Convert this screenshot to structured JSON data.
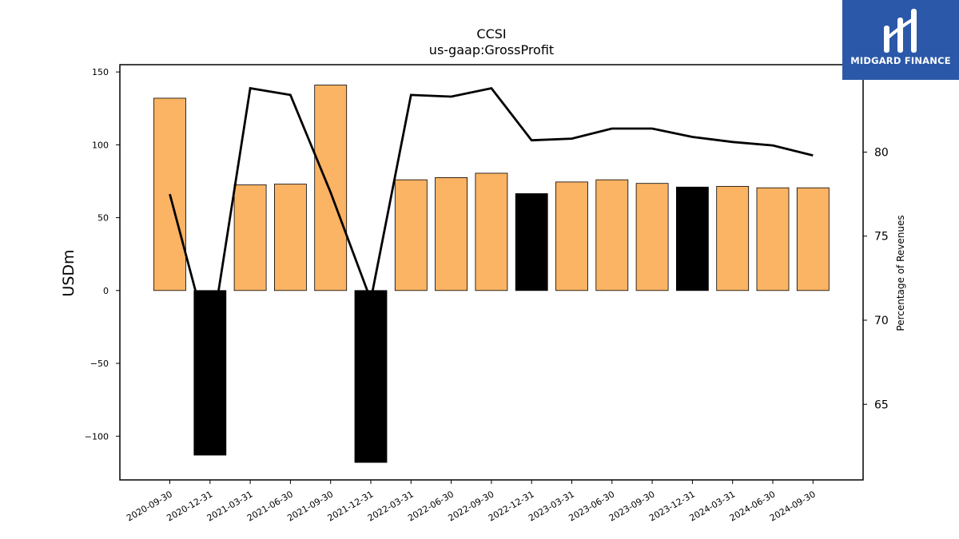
{
  "chart_data": {
    "type": "bar",
    "title": "CCSI",
    "subtitle": "us-gaap:GrossProfit",
    "ylabel": "USDm",
    "ylabel_right": "Percentage of Revenues",
    "ylim": [
      -130,
      155
    ],
    "ylim_right": [
      60.5,
      85.2
    ],
    "yticks": [
      -100,
      -50,
      0,
      50,
      100,
      150
    ],
    "yticks_right": [
      65,
      70,
      75,
      80
    ],
    "grid": false,
    "categories": [
      "2020-09-30",
      "2020-12-31",
      "2021-03-31",
      "2021-06-30",
      "2021-09-30",
      "2021-12-31",
      "2022-03-31",
      "2022-06-30",
      "2022-09-30",
      "2022-12-31",
      "2023-03-31",
      "2023-06-30",
      "2023-09-30",
      "2023-12-31",
      "2024-03-31",
      "2024-06-30",
      "2024-09-30"
    ],
    "series": [
      {
        "kind": "bar",
        "values": [
          132,
          -113,
          72.5,
          73,
          141,
          -118,
          76,
          77.5,
          80.5,
          66.5,
          74.5,
          76,
          73.5,
          71,
          71.5,
          70.5,
          70.5
        ],
        "bar_colors": [
          "#fbb364",
          "#000000",
          "#fbb364",
          "#fbb364",
          "#fbb364",
          "#000000",
          "#fbb364",
          "#fbb364",
          "#fbb364",
          "#000000",
          "#fbb364",
          "#fbb364",
          "#fbb364",
          "#000000",
          "#fbb364",
          "#fbb364",
          "#fbb364"
        ]
      },
      {
        "kind": "line",
        "axis": "right",
        "color": "#000000",
        "values": [
          77.5,
          68.5,
          83.8,
          83.4,
          77.6,
          71.2,
          83.4,
          83.3,
          83.8,
          80.7,
          80.8,
          81.4,
          81.4,
          80.9,
          80.6,
          80.4,
          79.8
        ]
      }
    ]
  },
  "logo": {
    "text": "MIDGARD FINANCE",
    "color": "#2b58a8"
  }
}
